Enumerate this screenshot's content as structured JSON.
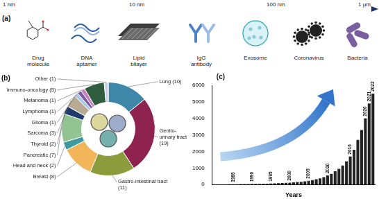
{
  "diagram": {
    "label": "(a)",
    "scale_labels": [
      "1 nm",
      "10 nm",
      "100 nm",
      "1 μm"
    ],
    "items": [
      "Drug molecule",
      "DNA aptamer",
      "Lipid bilayer",
      "IgG antibody",
      "Exosome",
      "Coronavirus",
      "Bacteria"
    ]
  },
  "chart_data": [
    {
      "type": "doughnut",
      "title": "(b)",
      "categories": [
        "Lung (10)",
        "Genito-urinary tract (19)",
        "Gastro-intestinal tract (11)",
        "Breast (8)",
        "Head and neck (2)",
        "Pancreatic (7)",
        "Thyroid (2)",
        "Sarcoma (3)",
        "Glioma (1)",
        "Lymphoma (1)",
        "Melanoma (1)",
        "Immuno-oncology (5)",
        "Other (1)"
      ],
      "values": [
        10,
        19,
        11,
        8,
        2,
        7,
        2,
        3,
        1,
        1,
        1,
        5,
        1
      ],
      "colors": [
        "#3f87a9",
        "#8e2350",
        "#8c9b3c",
        "#f2b55a",
        "#3d9aa1",
        "#93c393",
        "#1f3b6b",
        "#b9aa93",
        "#a9c9ea",
        "#7b5aa6",
        "#c77fbf",
        "#2f5c3c",
        "#c9d3e4"
      ]
    },
    {
      "type": "bar",
      "title": "(c)",
      "x_label": "Years",
      "categories": [
        null,
        null,
        null,
        null,
        null,
        "1985",
        null,
        null,
        null,
        null,
        "1990",
        null,
        null,
        null,
        null,
        "1995",
        null,
        null,
        null,
        null,
        "2000",
        null,
        null,
        null,
        null,
        "2005",
        null,
        null,
        null,
        null,
        "2010",
        null,
        null,
        null,
        null,
        null,
        "2016",
        null,
        null,
        null,
        "2020",
        "2021",
        "2022"
      ],
      "values": [
        5,
        8,
        10,
        12,
        15,
        20,
        22,
        25,
        28,
        30,
        35,
        38,
        42,
        48,
        55,
        60,
        70,
        80,
        90,
        100,
        110,
        130,
        150,
        170,
        200,
        230,
        270,
        320,
        380,
        450,
        550,
        650,
        800,
        950,
        1150,
        1400,
        1700,
        2100,
        2700,
        3300,
        4000,
        4900,
        5500
      ],
      "color": "#222222",
      "ylim": [
        0,
        6000
      ],
      "yticks": [
        0,
        1000,
        2000,
        3000,
        4000,
        5000,
        6000
      ],
      "grid": false,
      "tick_labels": "y"
    }
  ]
}
